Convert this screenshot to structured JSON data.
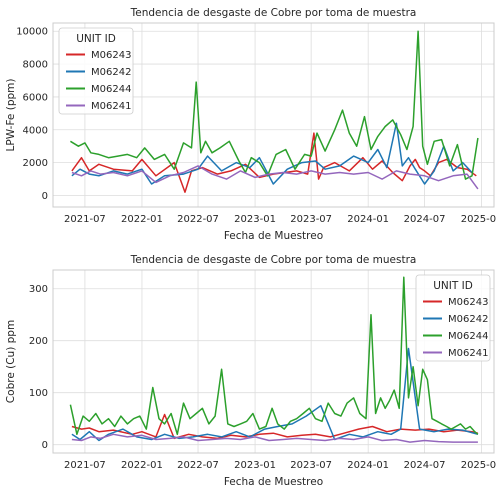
{
  "chart_data": [
    {
      "type": "line",
      "title": "Tendencia de desgaste de Cobre por toma de muestra",
      "xlabel": "Fecha de Muestreo",
      "ylabel": "LPW-Fe (ppm)",
      "xlim": [
        "2021-03-20",
        "2025-02-10"
      ],
      "ylim": [
        -700,
        10500
      ],
      "x_ticks": [
        "2021-07",
        "2022-01",
        "2022-07",
        "2023-01",
        "2023-07",
        "2024-01",
        "2024-07",
        "2025-01"
      ],
      "y_ticks": [
        0,
        2000,
        4000,
        6000,
        8000,
        10000
      ],
      "grid": true,
      "legend": {
        "title": "UNIT ID",
        "position": "upper-left"
      },
      "series": [
        {
          "name": "M06243",
          "color": "#d62728",
          "x": [
            "2021-05-20",
            "2021-06-20",
            "2021-07-15",
            "2021-08-15",
            "2021-10-01",
            "2021-12-01",
            "2022-01-01",
            "2022-02-15",
            "2022-04-15",
            "2022-05-20",
            "2022-06-10",
            "2022-07-15",
            "2022-09-01",
            "2022-10-15",
            "2022-12-01",
            "2023-01-15",
            "2023-03-01",
            "2023-05-15",
            "2023-06-20",
            "2023-07-10",
            "2023-07-25",
            "2023-08-10",
            "2023-09-15",
            "2023-11-01",
            "2023-12-15",
            "2024-01-15",
            "2024-02-15",
            "2024-03-20",
            "2024-04-20",
            "2024-05-15",
            "2024-06-01",
            "2024-06-15",
            "2024-07-01",
            "2024-07-20",
            "2024-08-15",
            "2024-09-10",
            "2024-10-15",
            "2024-11-15",
            "2024-12-15"
          ],
          "values": [
            1500,
            2300,
            1500,
            1900,
            1600,
            1500,
            2200,
            1200,
            2000,
            200,
            1500,
            1700,
            1300,
            1500,
            1900,
            1100,
            1300,
            1500,
            1300,
            3800,
            1000,
            1700,
            2000,
            1500,
            2300,
            1600,
            2100,
            1400,
            900,
            1800,
            2200,
            1700,
            1500,
            1200,
            2000,
            2200,
            1700,
            1600,
            1200
          ]
        },
        {
          "name": "M06242",
          "color": "#1f77b4",
          "x": [
            "2021-05-20",
            "2021-06-15",
            "2021-07-15",
            "2021-08-15",
            "2021-10-01",
            "2021-11-15",
            "2022-01-01",
            "2022-02-01",
            "2022-03-15",
            "2022-05-15",
            "2022-07-01",
            "2022-08-01",
            "2022-09-15",
            "2022-11-01",
            "2022-12-15",
            "2023-01-15",
            "2023-03-01",
            "2023-04-15",
            "2023-06-01",
            "2023-07-15",
            "2023-08-15",
            "2023-10-01",
            "2023-11-15",
            "2024-01-01",
            "2024-02-01",
            "2024-03-01",
            "2024-04-01",
            "2024-04-20",
            "2024-05-10",
            "2024-06-01",
            "2024-07-01",
            "2024-08-01",
            "2024-09-01",
            "2024-10-01",
            "2024-11-01",
            "2024-12-01"
          ],
          "values": [
            1200,
            1600,
            1300,
            1200,
            1500,
            1300,
            1600,
            700,
            1200,
            1300,
            1600,
            2400,
            1500,
            2000,
            1700,
            2300,
            700,
            1600,
            2000,
            2100,
            1600,
            1800,
            2400,
            2000,
            2800,
            1700,
            4400,
            1800,
            2300,
            1600,
            700,
            1500,
            3000,
            1500,
            2000,
            1400
          ]
        },
        {
          "name": "M06244",
          "color": "#2ca02c",
          "x": [
            "2021-05-15",
            "2021-06-10",
            "2021-07-01",
            "2021-07-20",
            "2021-08-15",
            "2021-09-15",
            "2021-10-15",
            "2021-11-15",
            "2021-12-15",
            "2022-01-10",
            "2022-02-10",
            "2022-03-15",
            "2022-04-15",
            "2022-05-15",
            "2022-06-10",
            "2022-06-25",
            "2022-07-10",
            "2022-07-25",
            "2022-08-15",
            "2022-09-10",
            "2022-10-10",
            "2022-11-10",
            "2022-12-01",
            "2022-12-20",
            "2023-01-15",
            "2023-02-10",
            "2023-03-10",
            "2023-04-10",
            "2023-05-10",
            "2023-06-10",
            "2023-07-01",
            "2023-07-20",
            "2023-08-15",
            "2023-09-15",
            "2023-10-10",
            "2023-11-01",
            "2023-11-25",
            "2023-12-20",
            "2024-01-10",
            "2024-02-01",
            "2024-02-25",
            "2024-03-20",
            "2024-04-15",
            "2024-05-05",
            "2024-05-25",
            "2024-06-10",
            "2024-06-25",
            "2024-07-10",
            "2024-08-01",
            "2024-08-25",
            "2024-09-20",
            "2024-10-15",
            "2024-11-10",
            "2024-12-01",
            "2024-12-20"
          ],
          "values": [
            3300,
            3000,
            3200,
            2600,
            2500,
            2300,
            2400,
            2500,
            2300,
            2900,
            2200,
            2500,
            1600,
            3200,
            2900,
            6900,
            2600,
            3300,
            2600,
            2900,
            3300,
            2100,
            1400,
            2300,
            2000,
            1200,
            2500,
            2800,
            1600,
            2500,
            2400,
            3800,
            2700,
            4000,
            5200,
            3800,
            3000,
            4800,
            2800,
            3600,
            4200,
            4600,
            3700,
            2800,
            4200,
            10000,
            3000,
            1900,
            3300,
            3400,
            1800,
            3100,
            1000,
            1200,
            3500
          ]
        },
        {
          "name": "M06241",
          "color": "#9467bd",
          "x": [
            "2021-05-20",
            "2021-06-20",
            "2021-07-20",
            "2021-08-20",
            "2021-10-01",
            "2021-11-15",
            "2022-01-01",
            "2022-02-15",
            "2022-04-01",
            "2022-05-15",
            "2022-07-01",
            "2022-08-15",
            "2022-10-01",
            "2022-11-15",
            "2023-01-01",
            "2023-02-15",
            "2023-04-01",
            "2023-05-15",
            "2023-07-01",
            "2023-08-15",
            "2023-10-01",
            "2023-11-15",
            "2024-01-01",
            "2024-02-15",
            "2024-04-01",
            "2024-05-15",
            "2024-07-01",
            "2024-08-15",
            "2024-10-01",
            "2024-11-15",
            "2024-12-20"
          ],
          "values": [
            1400,
            1200,
            1500,
            1300,
            1400,
            1200,
            1500,
            800,
            1200,
            1400,
            1800,
            1300,
            1000,
            1500,
            1100,
            1300,
            1400,
            1300,
            1500,
            1300,
            1400,
            1300,
            1400,
            1000,
            1500,
            1300,
            1200,
            900,
            1200,
            1300,
            400
          ]
        }
      ]
    },
    {
      "type": "line",
      "title": "Tendencia de desgaste de Cobre por toma de muestra",
      "xlabel": "Fecha de Muestreo",
      "ylabel": "Cobre (Cu) ppm",
      "xlim": [
        "2021-03-20",
        "2025-02-10"
      ],
      "ylim": [
        -16,
        336
      ],
      "x_ticks": [
        "2021-07",
        "2022-01",
        "2022-07",
        "2023-01",
        "2023-07",
        "2024-01",
        "2024-07",
        "2025-01"
      ],
      "y_ticks": [
        0,
        100,
        200,
        300
      ],
      "grid": true,
      "legend": {
        "title": "UNIT ID",
        "position": "upper-right"
      },
      "series": [
        {
          "name": "M06243",
          "color": "#d62728",
          "x": [
            "2021-05-20",
            "2021-06-20",
            "2021-07-15",
            "2021-08-15",
            "2021-10-01",
            "2021-12-01",
            "2022-01-01",
            "2022-02-15",
            "2022-03-15",
            "2022-04-15",
            "2022-06-01",
            "2022-07-15",
            "2022-09-01",
            "2022-10-15",
            "2022-12-01",
            "2023-01-15",
            "2023-03-01",
            "2023-04-15",
            "2023-06-01",
            "2023-07-15",
            "2023-09-01",
            "2023-10-15",
            "2023-12-01",
            "2024-01-15",
            "2024-03-01",
            "2024-04-15",
            "2024-06-01",
            "2024-07-15",
            "2024-09-01",
            "2024-10-15",
            "2024-12-01",
            "2024-12-20"
          ],
          "values": [
            35,
            30,
            32,
            25,
            28,
            20,
            25,
            15,
            58,
            12,
            20,
            15,
            12,
            18,
            15,
            20,
            22,
            15,
            18,
            20,
            15,
            22,
            30,
            35,
            25,
            30,
            28,
            30,
            25,
            28,
            25,
            22
          ]
        },
        {
          "name": "M06242",
          "color": "#1f77b4",
          "x": [
            "2021-05-20",
            "2021-06-15",
            "2021-07-15",
            "2021-08-15",
            "2021-09-15",
            "2021-11-01",
            "2021-12-15",
            "2022-02-01",
            "2022-03-15",
            "2022-05-01",
            "2022-06-15",
            "2022-08-01",
            "2022-09-15",
            "2022-11-01",
            "2022-12-15",
            "2023-02-01",
            "2023-03-15",
            "2023-05-01",
            "2023-06-15",
            "2023-08-01",
            "2023-09-15",
            "2023-11-01",
            "2023-12-15",
            "2024-02-01",
            "2024-03-15",
            "2024-04-15",
            "2024-05-10",
            "2024-06-15",
            "2024-08-01",
            "2024-09-15",
            "2024-11-01",
            "2024-12-20"
          ],
          "values": [
            20,
            10,
            25,
            8,
            20,
            30,
            15,
            10,
            20,
            12,
            15,
            20,
            15,
            25,
            15,
            30,
            35,
            40,
            55,
            75,
            10,
            20,
            15,
            25,
            20,
            30,
            185,
            30,
            25,
            30,
            28,
            20
          ]
        },
        {
          "name": "M06244",
          "color": "#2ca02c",
          "x": [
            "2021-05-15",
            "2021-06-05",
            "2021-06-25",
            "2021-07-15",
            "2021-08-05",
            "2021-08-25",
            "2021-09-15",
            "2021-10-05",
            "2021-10-25",
            "2021-11-15",
            "2021-12-05",
            "2021-12-25",
            "2022-01-15",
            "2022-02-05",
            "2022-02-25",
            "2022-03-15",
            "2022-04-05",
            "2022-04-25",
            "2022-05-15",
            "2022-06-05",
            "2022-06-25",
            "2022-07-15",
            "2022-08-05",
            "2022-08-25",
            "2022-09-15",
            "2022-10-05",
            "2022-10-25",
            "2022-11-15",
            "2022-12-05",
            "2022-12-25",
            "2023-01-15",
            "2023-02-05",
            "2023-02-25",
            "2023-03-15",
            "2023-04-05",
            "2023-04-25",
            "2023-05-15",
            "2023-06-05",
            "2023-06-25",
            "2023-07-15",
            "2023-08-05",
            "2023-08-25",
            "2023-09-15",
            "2023-10-05",
            "2023-10-25",
            "2023-11-15",
            "2023-12-05",
            "2023-12-25",
            "2024-01-10",
            "2024-01-25",
            "2024-02-10",
            "2024-02-25",
            "2024-03-10",
            "2024-03-25",
            "2024-04-10",
            "2024-04-25",
            "2024-05-10",
            "2024-05-25",
            "2024-06-10",
            "2024-06-25",
            "2024-07-10",
            "2024-07-25",
            "2024-08-10",
            "2024-08-25",
            "2024-09-10",
            "2024-09-25",
            "2024-10-10",
            "2024-10-25",
            "2024-11-10",
            "2024-11-25",
            "2024-12-10",
            "2024-12-20"
          ],
          "values": [
            77,
            20,
            55,
            45,
            60,
            40,
            50,
            35,
            55,
            40,
            50,
            55,
            30,
            110,
            50,
            40,
            60,
            20,
            80,
            50,
            60,
            70,
            40,
            55,
            145,
            40,
            35,
            40,
            45,
            60,
            30,
            35,
            70,
            40,
            30,
            45,
            50,
            60,
            70,
            50,
            45,
            80,
            60,
            55,
            80,
            90,
            60,
            50,
            250,
            60,
            90,
            70,
            85,
            105,
            70,
            322,
            90,
            150,
            75,
            145,
            125,
            50,
            45,
            40,
            35,
            30,
            35,
            40,
            30,
            35,
            25,
            20
          ]
        },
        {
          "name": "M06241",
          "color": "#9467bd",
          "x": [
            "2021-05-20",
            "2021-06-20",
            "2021-07-20",
            "2021-08-20",
            "2021-10-01",
            "2021-11-15",
            "2022-01-01",
            "2022-02-15",
            "2022-04-01",
            "2022-05-15",
            "2022-07-01",
            "2022-08-15",
            "2022-10-01",
            "2022-11-15",
            "2023-01-01",
            "2023-02-15",
            "2023-04-01",
            "2023-05-15",
            "2023-07-01",
            "2023-08-15",
            "2023-10-01",
            "2023-11-15",
            "2024-01-01",
            "2024-02-15",
            "2024-04-01",
            "2024-05-15",
            "2024-07-01",
            "2024-08-15",
            "2024-10-01",
            "2024-11-15",
            "2024-12-20"
          ],
          "values": [
            10,
            8,
            15,
            12,
            20,
            15,
            18,
            10,
            12,
            15,
            8,
            10,
            12,
            10,
            15,
            8,
            10,
            12,
            10,
            8,
            12,
            10,
            15,
            8,
            10,
            5,
            8,
            6,
            5,
            5,
            5
          ]
        }
      ]
    }
  ]
}
